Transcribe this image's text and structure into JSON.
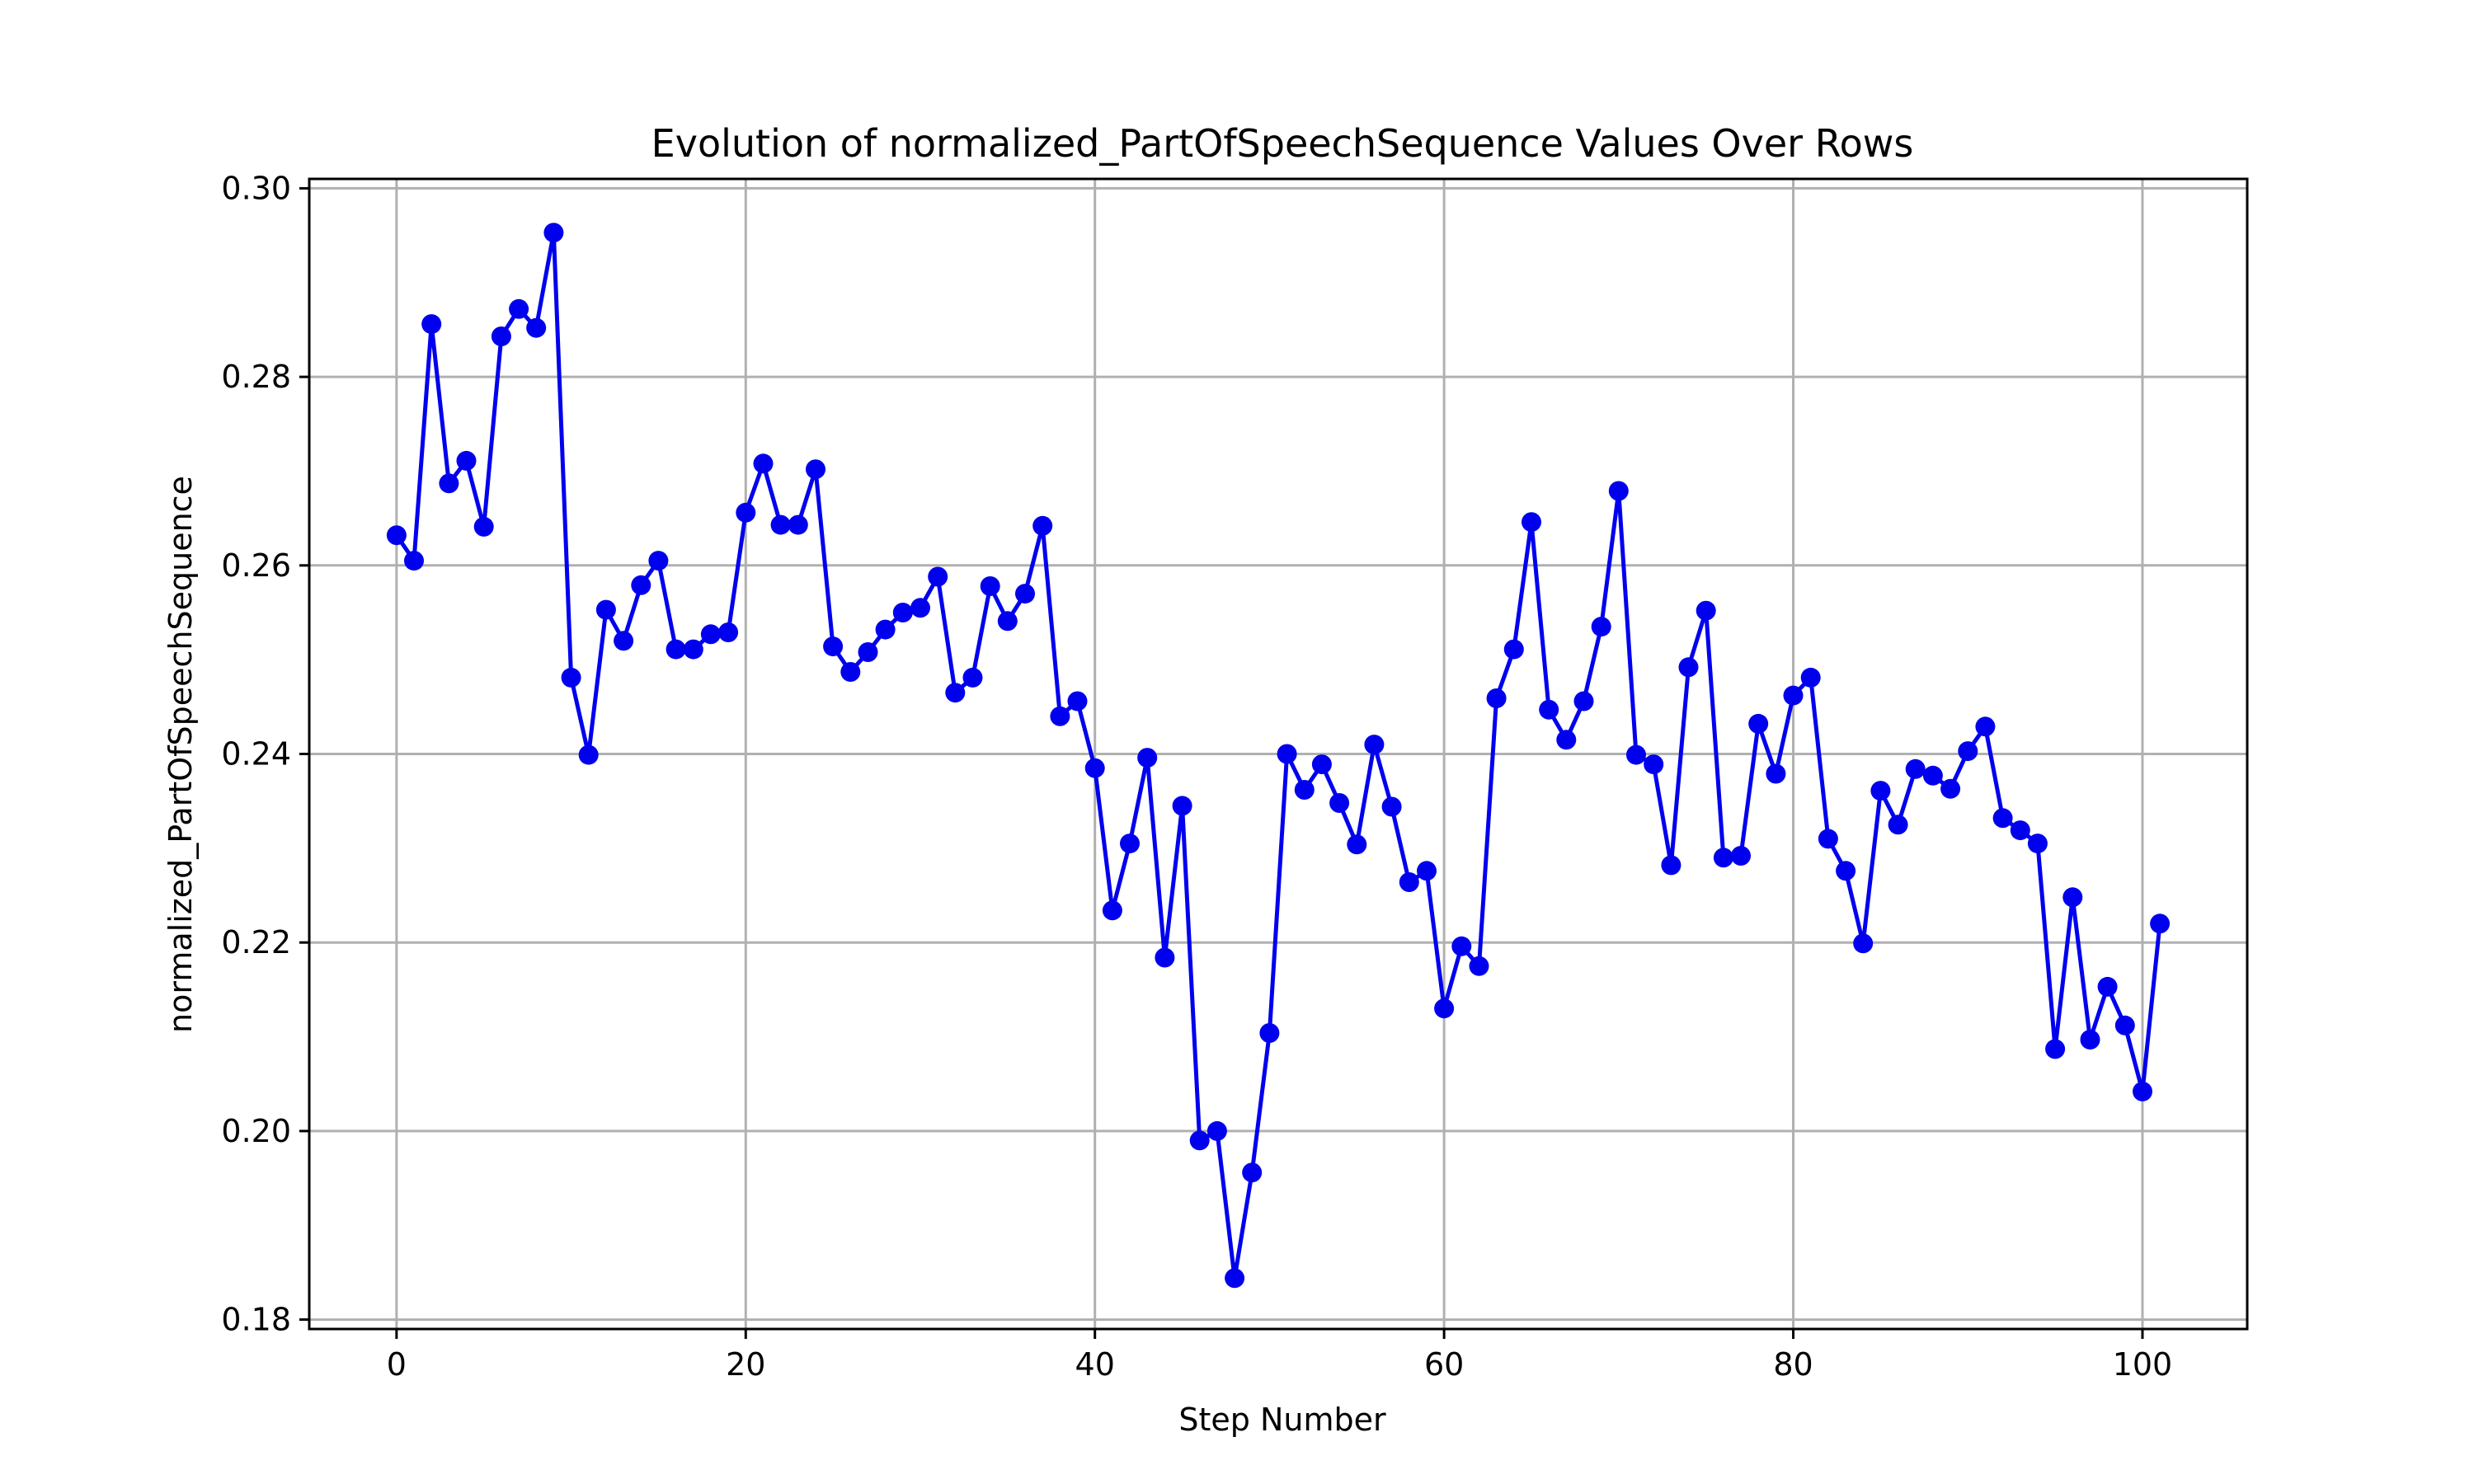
{
  "chart_data": {
    "type": "line",
    "title": "Evolution of normalized_PartOfSpeechSequence Values Over Rows",
    "xlabel": "Step Number",
    "ylabel": "normalized_PartOfSpeechSequence",
    "xlim": [
      -5,
      106
    ],
    "ylim": [
      0.179,
      0.301
    ],
    "xticks": [
      0,
      20,
      40,
      60,
      80,
      100
    ],
    "xtick_labels": [
      "0",
      "20",
      "40",
      "60",
      "80",
      "100"
    ],
    "yticks": [
      0.18,
      0.2,
      0.22,
      0.24,
      0.26,
      0.28,
      0.3
    ],
    "ytick_labels": [
      "0.18",
      "0.20",
      "0.22",
      "0.24",
      "0.26",
      "0.28",
      "0.30"
    ],
    "grid": true,
    "color": "#0000ee",
    "marker": "circle",
    "series": [
      {
        "x": [
          0,
          1,
          2,
          3,
          4,
          5,
          6,
          7,
          8,
          9,
          10,
          11,
          12,
          13,
          14,
          15,
          16,
          17,
          18,
          19,
          20,
          21,
          22,
          23,
          24,
          25,
          26,
          27,
          28,
          29,
          30,
          31,
          32,
          33,
          34,
          35,
          36,
          37,
          38,
          39,
          40,
          41,
          42,
          43,
          44,
          45,
          46,
          47,
          48,
          49,
          50,
          51,
          52,
          53,
          54,
          55,
          56,
          57,
          58,
          59,
          60,
          61,
          62,
          63,
          64,
          65,
          66,
          67,
          68,
          69,
          70,
          71,
          72,
          73,
          74,
          75,
          76,
          77,
          78,
          79,
          80,
          81,
          82,
          83,
          84,
          85,
          86,
          87,
          88,
          89,
          90,
          91,
          92,
          93,
          94,
          95,
          96,
          97,
          98,
          99,
          100,
          101
        ],
        "values": [
          0.2632,
          0.2605,
          0.2856,
          0.2687,
          0.2711,
          0.2641,
          0.2843,
          0.2872,
          0.2852,
          0.2953,
          0.2481,
          0.2399,
          0.2553,
          0.252,
          0.2579,
          0.2605,
          0.2511,
          0.2511,
          0.2527,
          0.2529,
          0.2656,
          0.2708,
          0.2643,
          0.2643,
          0.2702,
          0.2514,
          0.2487,
          0.2508,
          0.2532,
          0.255,
          0.2555,
          0.2588,
          0.2465,
          0.2481,
          0.2578,
          0.2541,
          0.257,
          0.2642,
          0.244,
          0.2456,
          0.2385,
          0.2234,
          0.2305,
          0.2396,
          0.2184,
          0.2345,
          0.199,
          0.2,
          0.1844,
          0.1956,
          0.2104,
          0.24,
          0.2362,
          0.2389,
          0.2348,
          0.2304,
          0.241,
          0.2344,
          0.2264,
          0.2276,
          0.213,
          0.2196,
          0.2175,
          0.2459,
          0.2511,
          0.2646,
          0.2447,
          0.2415,
          0.2456,
          0.2535,
          0.2679,
          0.2399,
          0.2389,
          0.2282,
          0.2492,
          0.2552,
          0.229,
          0.2292,
          0.2432,
          0.2379,
          0.2462,
          0.2481,
          0.231,
          0.2276,
          0.2199,
          0.2361,
          0.2325,
          0.2384,
          0.2377,
          0.2363,
          0.2403,
          0.2429,
          0.2332,
          0.2319,
          0.2305,
          0.2087,
          0.2248,
          0.2097,
          0.2153,
          0.2112,
          0.2042,
          0.222
        ]
      }
    ]
  }
}
